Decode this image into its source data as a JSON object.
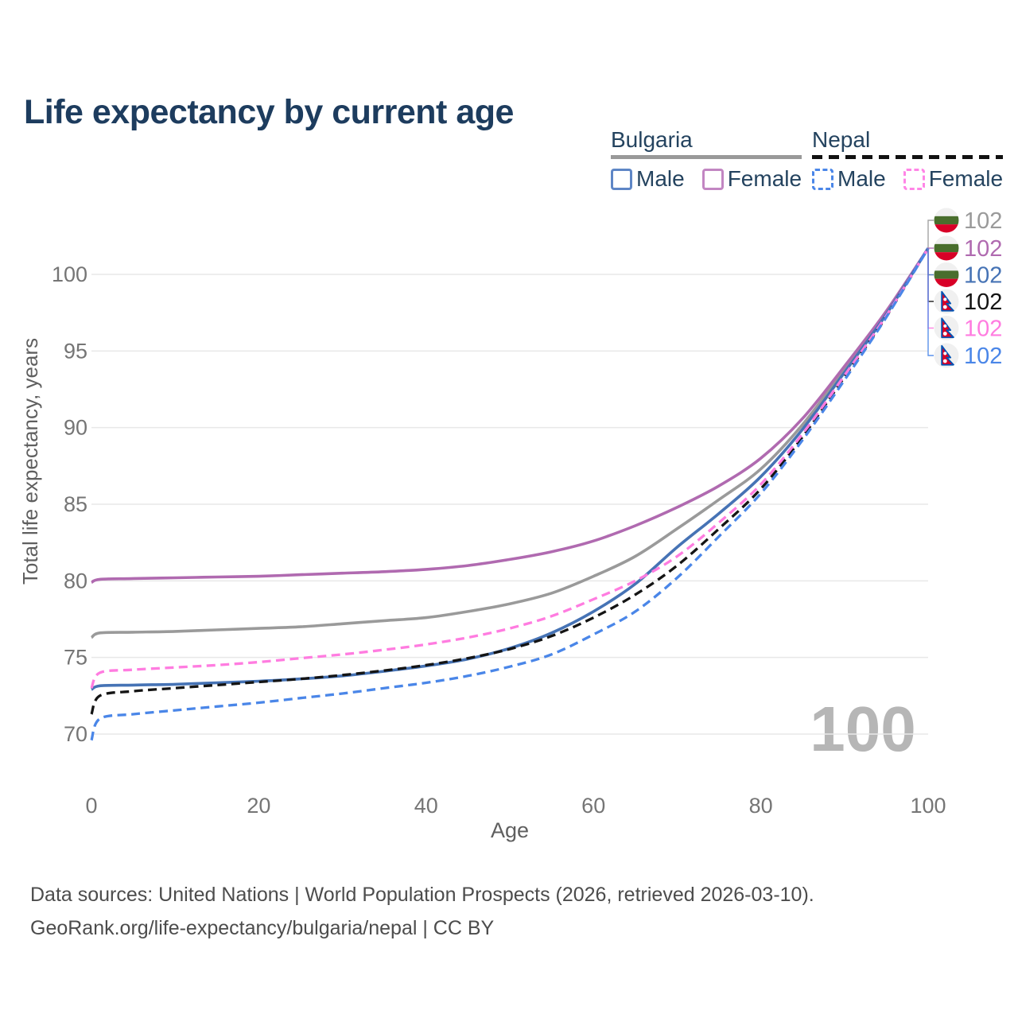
{
  "title": "Life expectancy by current age",
  "legend": {
    "groups": [
      {
        "label": "Bulgaria",
        "line_style": "solid",
        "items": [
          {
            "label": "Male"
          },
          {
            "label": "Female"
          }
        ]
      },
      {
        "label": "Nepal",
        "line_style": "dashed",
        "items": [
          {
            "label": "Male"
          },
          {
            "label": "Female"
          }
        ]
      }
    ]
  },
  "watermark": "100",
  "footer": {
    "line1": "Data sources: United Nations | World Population Prospects (2026, retrieved 2026-03-10).",
    "line2": "GeoRank.org/life-expectancy/bulgaria/nepal | CC BY"
  },
  "colors": {
    "title": "#1d3c5e",
    "grid": "#e8e8e8",
    "tick_label": "#757575",
    "axis_title": "#5f5f5f",
    "watermark": "#b6b6b6",
    "bulgaria_total": "#9a9a9a",
    "bulgaria_female": "#b06ab0",
    "bulgaria_male": "#4673b5",
    "nepal_total": "#141414",
    "nepal_female": "#ff7ce0",
    "nepal_male": "#4a86e8",
    "flag_bg_green": "#496e2d",
    "flag_bg_red": "#d80027",
    "flag_np_crimson": "#d80027",
    "flag_np_blue": "#0052b4",
    "flag_white": "#f0f0f0"
  },
  "chart_data": {
    "type": "line",
    "title": "Life expectancy by current age",
    "xlabel": "Age",
    "ylabel": "Total life expectancy, years",
    "xlim": [
      0,
      100
    ],
    "ylim": [
      69,
      102
    ],
    "x_ticks": [
      0,
      20,
      40,
      60,
      80,
      100
    ],
    "y_ticks": [
      70,
      75,
      80,
      85,
      90,
      95,
      100
    ],
    "grid": "horizontal-only",
    "legend_position": "top-right",
    "ages": [
      0,
      1,
      5,
      10,
      15,
      20,
      25,
      30,
      35,
      40,
      45,
      50,
      55,
      60,
      65,
      70,
      75,
      80,
      85,
      90,
      95,
      100
    ],
    "series": [
      {
        "id": "bulgaria-total",
        "name": "Bulgaria",
        "sex": "Total",
        "flag": "bg",
        "color": "#9a9a9a",
        "dashed": false,
        "end_label": "102",
        "values": [
          76.3,
          76.6,
          76.65,
          76.7,
          76.8,
          76.9,
          77.0,
          77.2,
          77.4,
          77.6,
          78.0,
          78.5,
          79.2,
          80.3,
          81.6,
          83.4,
          85.3,
          87.3,
          90.2,
          93.8,
          97.5,
          101.7
        ]
      },
      {
        "id": "bulgaria-female",
        "name": "Bulgaria",
        "sex": "Female",
        "flag": "bg",
        "color": "#b06ab0",
        "dashed": false,
        "end_label": "102",
        "values": [
          79.9,
          80.1,
          80.15,
          80.2,
          80.25,
          80.3,
          80.4,
          80.5,
          80.6,
          80.75,
          81.0,
          81.4,
          81.9,
          82.6,
          83.6,
          84.8,
          86.2,
          88.0,
          90.6,
          94.0,
          97.6,
          101.7
        ]
      },
      {
        "id": "bulgaria-male",
        "name": "Bulgaria",
        "sex": "Male",
        "flag": "bg",
        "color": "#4673b5",
        "dashed": false,
        "end_label": "102",
        "values": [
          72.9,
          73.15,
          73.2,
          73.25,
          73.35,
          73.45,
          73.6,
          73.8,
          74.1,
          74.45,
          74.9,
          75.6,
          76.6,
          78.0,
          79.8,
          82.2,
          84.4,
          86.8,
          89.9,
          93.6,
          97.4,
          101.7
        ]
      },
      {
        "id": "nepal-total",
        "name": "Nepal",
        "sex": "Total",
        "flag": "np",
        "color": "#141414",
        "dashed": true,
        "end_label": "102",
        "values": [
          71.3,
          72.5,
          72.8,
          73.0,
          73.2,
          73.4,
          73.6,
          73.85,
          74.15,
          74.5,
          74.95,
          75.55,
          76.4,
          77.6,
          79.1,
          81.0,
          83.4,
          86.0,
          89.4,
          93.3,
          97.25,
          101.7
        ]
      },
      {
        "id": "nepal-female",
        "name": "Nepal",
        "sex": "Female",
        "flag": "np",
        "color": "#ff7ce0",
        "dashed": true,
        "end_label": "102",
        "values": [
          73.0,
          74.0,
          74.2,
          74.35,
          74.5,
          74.7,
          74.95,
          75.2,
          75.5,
          75.85,
          76.3,
          76.9,
          77.7,
          78.8,
          80.0,
          81.6,
          83.8,
          86.3,
          89.6,
          93.4,
          97.3,
          101.7
        ]
      },
      {
        "id": "nepal-male",
        "name": "Nepal",
        "sex": "Male",
        "flag": "np",
        "color": "#4a86e8",
        "dashed": true,
        "end_label": "102",
        "values": [
          69.6,
          71.0,
          71.3,
          71.55,
          71.8,
          72.05,
          72.35,
          72.65,
          73.0,
          73.35,
          73.8,
          74.4,
          75.2,
          76.5,
          78.0,
          80.2,
          82.9,
          85.7,
          89.2,
          93.1,
          97.2,
          101.7
        ]
      }
    ]
  }
}
